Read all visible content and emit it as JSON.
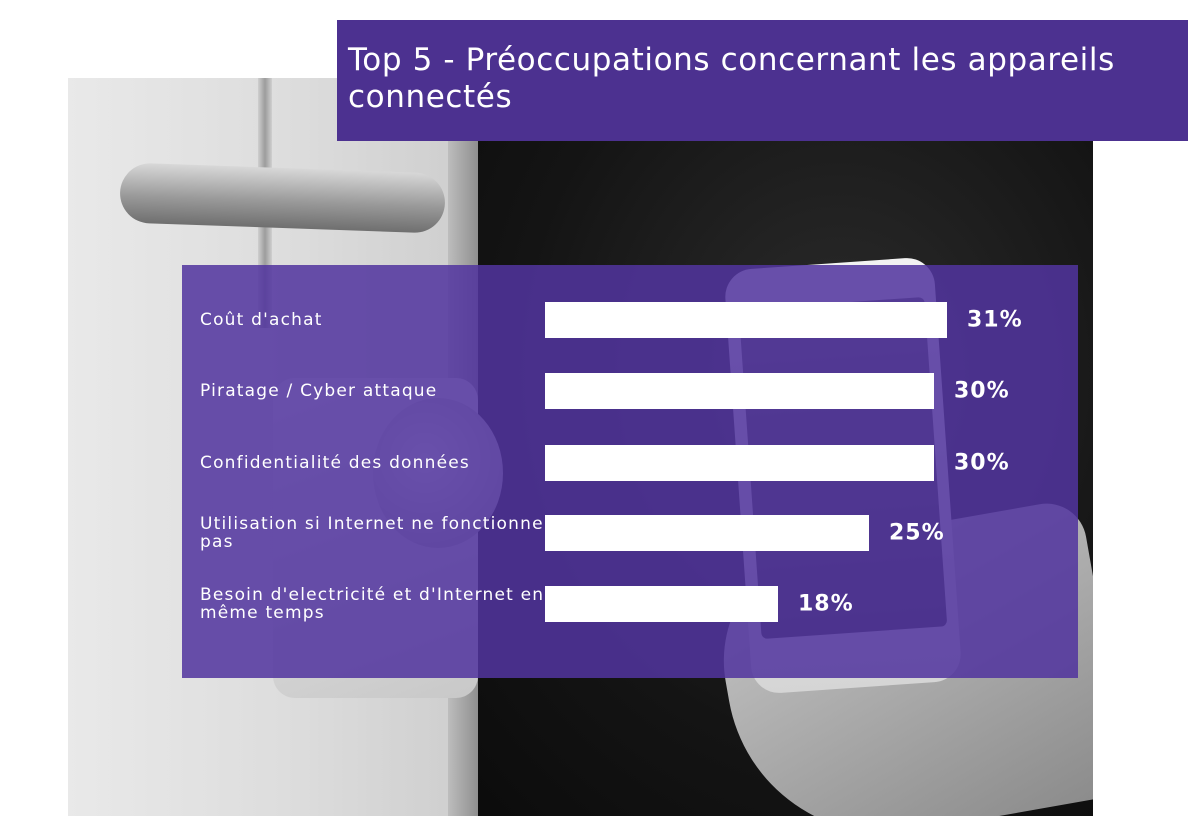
{
  "colors": {
    "title_band": "#4c3190",
    "panel": "#52349e",
    "bar": "#ffffff",
    "text": "#ffffff"
  },
  "chart_data": {
    "type": "bar",
    "orientation": "horizontal",
    "title": "Top 5 - Préoccupations concernant les appareils connectés",
    "xlabel": "",
    "ylabel": "",
    "xlim": [
      0,
      31
    ],
    "grid": false,
    "categories": [
      "Coût d'achat",
      "Piratage / Cyber attaque",
      "Confidentialité des données",
      "Utilisation si Internet ne fonctionne pas",
      "Besoin d'electricité et d'Internet en même temps"
    ],
    "values": [
      31,
      30,
      30,
      25,
      18
    ],
    "value_labels": [
      "31%",
      "30%",
      "30%",
      "25%",
      "18%"
    ]
  }
}
